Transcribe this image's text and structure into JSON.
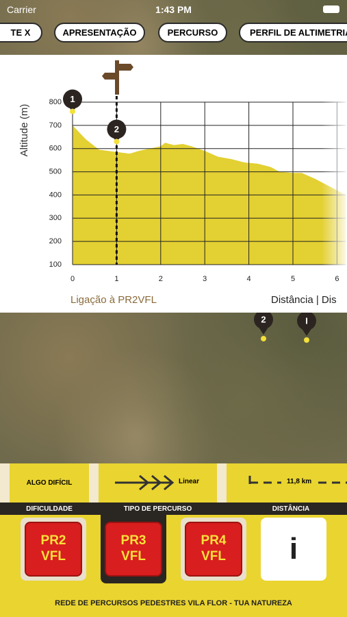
{
  "status_bar": {
    "carrier": "Carrier",
    "time": "1:43 PM"
  },
  "tabs": [
    "TE   X",
    "APRESENTAÇÃO",
    "PERCURSO",
    "PERFIL DE ALTIMETRIA"
  ],
  "elevation_chart": {
    "type": "area",
    "y_label": "Altitude (m)",
    "color": "#e3d032",
    "x": [
      0,
      0.3,
      0.6,
      1,
      1.3,
      1.5,
      2,
      2.1,
      2.3,
      2.5,
      2.7,
      3,
      3.3,
      3.6,
      3.9,
      4.2,
      4.5,
      4.7,
      5,
      5.2,
      5.5,
      5.8,
      6,
      6.2
    ],
    "values": [
      700,
      640,
      595,
      585,
      578,
      590,
      610,
      625,
      615,
      620,
      610,
      590,
      565,
      555,
      540,
      535,
      520,
      500,
      495,
      495,
      470,
      440,
      420,
      400
    ],
    "xlim": [
      0,
      6.2
    ],
    "ylim": [
      100,
      800
    ],
    "xticks": [
      0,
      1,
      2,
      3,
      4,
      5,
      6
    ],
    "yticks": [
      100,
      200,
      300,
      400,
      500,
      600,
      700,
      800
    ],
    "markers": [
      {
        "label": "1",
        "x": 0,
        "y": 760
      },
      {
        "label": "2",
        "x": 1,
        "y": 630
      }
    ],
    "route_caption": "Ligação à PR2VFL",
    "axis_caption": "Distância | Dis"
  },
  "map_markers": [
    "2",
    "I"
  ],
  "info": {
    "difficulty": "ALGO DIFÍCIL",
    "route_type": "Linear",
    "distance": "11,8 km",
    "labels": [
      "DIFICULDADE",
      "TIPO DE PERCURSO",
      "DISTÂNCIA"
    ]
  },
  "buttons": [
    "PR2\nVFL",
    "PR3\nVFL",
    "PR4\nVFL",
    "i"
  ],
  "footer": "REDE DE PERCURSOS PEDESTRES VILA FLOR - TUA NATUREZA"
}
